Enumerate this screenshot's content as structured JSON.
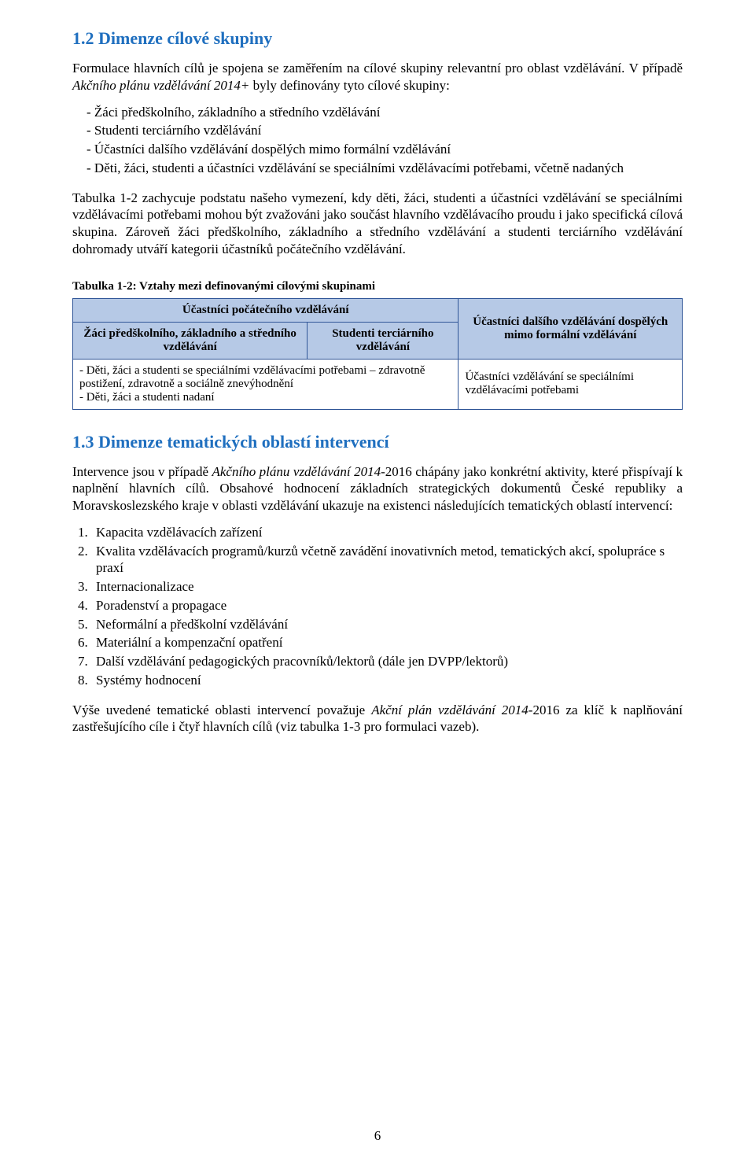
{
  "section1": {
    "heading": "1.2 Dimenze cílové skupiny",
    "p1_part1": "Formulace hlavních cílů je spojena se zaměřením na cílové skupiny relevantní pro oblast vzdělávání. V případě ",
    "p1_italic": "Akčního plánu vzdělávání 2014+",
    "p1_part2": " byly definovány tyto cílové skupiny:",
    "bullets": [
      "Žáci předškolního, základního a středního vzdělávání",
      "Studenti terciárního vzdělávání",
      "Účastníci dalšího vzdělávání dospělých mimo formální vzdělávání",
      "Děti, žáci, studenti a účastníci vzdělávání se speciálními vzdělávacími potřebami, včetně nadaných"
    ],
    "p2": "Tabulka 1-2 zachycuje podstatu našeho vymezení, kdy děti, žáci, studenti a účastníci vzdělávání se speciálními vzdělávacími potřebami mohou být zvažováni jako součást hlavního vzdělávacího proudu i jako specifická cílová skupina. Zároveň žáci předškolního, základního a středního vzdělávání a studenti terciárního vzdělávání dohromady utváří kategorii účastníků počátečního vzdělávání."
  },
  "table": {
    "caption": "Tabulka 1-2: Vztahy mezi definovanými cílovými skupinami",
    "header_top_left": "Účastníci počátečního vzdělávání",
    "header_right": "Účastníci dalšího vzdělávání dospělých mimo formální vzdělávání",
    "header_sub_left": "Žáci předškolního, základního a středního vzdělávání",
    "header_sub_right": "Studenti terciárního vzdělávání",
    "row_left": "- Děti, žáci a studenti se speciálními vzdělávacími potřebami – zdravotně postižení, zdravotně a sociálně znevýhodnění\n- Děti, žáci a studenti nadaní",
    "row_right": "Účastníci vzdělávání se speciálními vzdělávacími potřebami"
  },
  "section2": {
    "heading": "1.3 Dimenze tematických oblastí intervencí",
    "p1_part1": "Intervence jsou v případě ",
    "p1_italic": "Akčního plánu vzdělávání 2014",
    "p1_part2": "-2016 chápány jako konkrétní aktivity, které přispívají k naplnění hlavních cílů. Obsahové hodnocení základních strategických dokumentů České republiky a Moravskoslezského kraje v oblasti vzdělávání ukazuje na existenci následujících tematických oblastí intervencí:",
    "items": [
      "Kapacita vzdělávacích zařízení",
      "Kvalita vzdělávacích programů/kurzů včetně zavádění inovativních metod, tematických akcí, spolupráce s praxí",
      "Internacionalizace",
      "Poradenství a propagace",
      "Neformální a předškolní vzdělávání",
      "Materiální a kompenzační opatření",
      "Další vzdělávání pedagogických pracovníků/lektorů (dále jen DVPP/lektorů)",
      "Systémy hodnocení"
    ],
    "p2_part1": "Výše uvedené tematické oblasti intervencí považuje ",
    "p2_italic": "Akční plán vzdělávání 2014",
    "p2_part2": "-2016 za klíč k naplňování zastřešujícího cíle i čtyř hlavních cílů (viz tabulka 1-3 pro formulaci vazeb)."
  },
  "page_number": "6",
  "colors": {
    "heading": "#1f6fbf",
    "table_header_bg": "#b6c9e6",
    "table_border": "#2f5597",
    "text": "#000000",
    "background": "#ffffff"
  },
  "typography": {
    "body_family": "Times New Roman",
    "body_size_pt": 12,
    "heading_size_pt": 14,
    "caption_size_pt": 11
  }
}
